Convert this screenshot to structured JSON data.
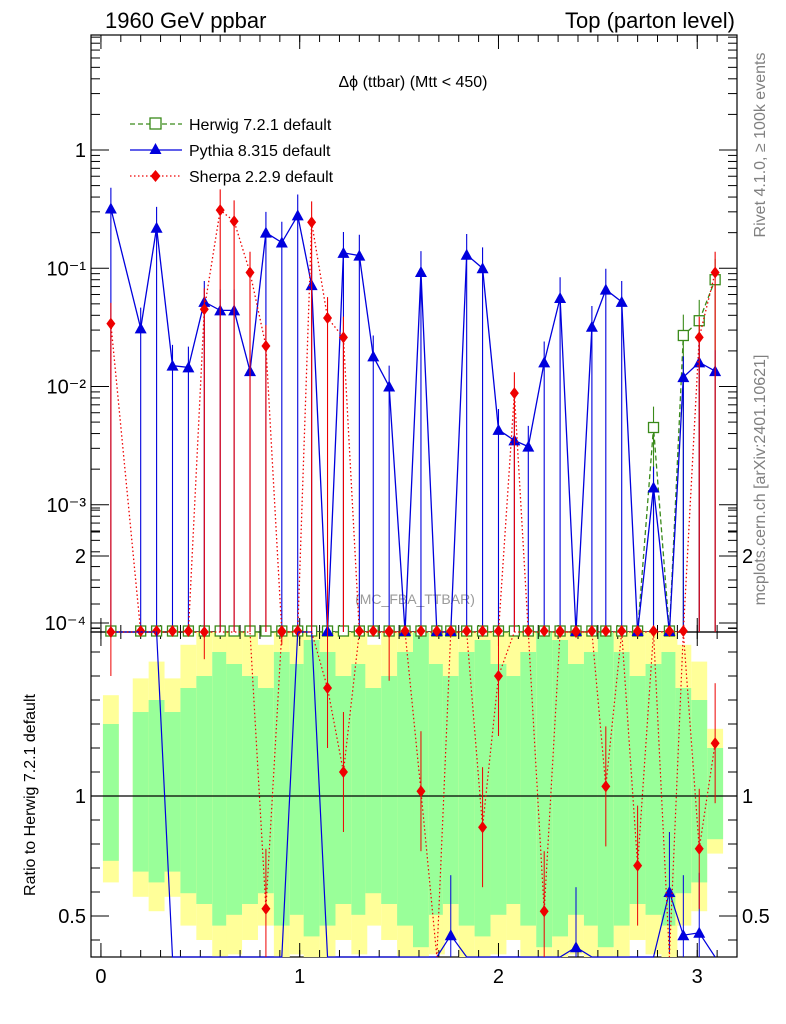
{
  "header": {
    "left": "1960 GeV ppbar",
    "right": "Top (parton level)"
  },
  "side": {
    "rivet": "Rivet 4.1.0, ≥ 100k events",
    "mcplots": "mcplots.cern.ch [arXiv:2401.10621]"
  },
  "chart_data": {
    "type": "line",
    "title": "Δϕ (ttbar) (Mtt < 450)",
    "watermark": "(MC_FBA_TTBAR)",
    "xlim": [
      -0.05,
      3.2
    ],
    "ylim_top": [
      8e-05,
      10
    ],
    "yscale_top": "log",
    "ylim_ratio": [
      0.35,
      2.3
    ],
    "ylabel_ratio": "Ratio to Herwig 7.2.1 default",
    "x_ticks": [
      "0",
      "1",
      "2",
      "3"
    ],
    "y_ticks_top": [
      "10⁻⁴",
      "10⁻³",
      "10⁻²",
      "10⁻¹",
      "1"
    ],
    "y_ticks_ratio": [
      "0.5",
      "1",
      "2"
    ],
    "legend_position": "top-left",
    "x": [
      0.05,
      0.2,
      0.28,
      0.36,
      0.44,
      0.52,
      0.6,
      0.67,
      0.75,
      0.83,
      0.91,
      0.99,
      1.06,
      1.14,
      1.22,
      1.3,
      1.37,
      1.45,
      1.53,
      1.61,
      1.69,
      1.76,
      1.84,
      1.92,
      2.0,
      2.08,
      2.15,
      2.23,
      2.31,
      2.39,
      2.47,
      2.54,
      2.62,
      2.7,
      2.78,
      2.86,
      2.93,
      3.01,
      3.09
    ],
    "series": [
      {
        "name": "Herwig 7.2.1 default",
        "color": "#3a8a1a",
        "values": [
          8e-05,
          8e-05,
          8e-05,
          8e-05,
          8e-05,
          8e-05,
          8e-05,
          8e-05,
          8e-05,
          8e-05,
          8e-05,
          8e-05,
          8e-05,
          8e-05,
          8e-05,
          8e-05,
          8e-05,
          8e-05,
          8e-05,
          8e-05,
          8e-05,
          8e-05,
          8e-05,
          8e-05,
          8e-05,
          8e-05,
          8e-05,
          8e-05,
          8e-05,
          8e-05,
          8e-05,
          8e-05,
          8e-05,
          8e-05,
          0.0045,
          8e-05,
          0.027,
          0.036,
          0.08
        ]
      },
      {
        "name": "Pythia 8.315 default",
        "color": "#0000dd",
        "values": [
          0.32,
          0.031,
          0.22,
          0.015,
          0.0145,
          0.052,
          0.044,
          0.044,
          0.0135,
          0.2,
          0.165,
          0.28,
          0.072,
          8e-05,
          0.135,
          0.128,
          0.018,
          0.01,
          8e-05,
          0.093,
          8e-05,
          8e-05,
          0.13,
          0.1,
          0.0043,
          0.0035,
          0.0031,
          0.016,
          0.056,
          8e-05,
          0.032,
          0.066,
          0.052,
          8e-05,
          0.0014,
          8e-05,
          0.012,
          0.016,
          0.0135
        ],
        "ratio": [
          3.0,
          3.0,
          3.0,
          0.3,
          0.3,
          0.3,
          0.3,
          0.3,
          0.3,
          0.3,
          0.3,
          3.0,
          3.0,
          0.3,
          0.3,
          0.3,
          0.3,
          0.3,
          0.3,
          0.3,
          0.3,
          0.42,
          0.3,
          0.3,
          0.3,
          0.3,
          0.3,
          0.3,
          0.3,
          0.37,
          0.3,
          0.3,
          0.3,
          0.3,
          0.3,
          0.6,
          0.42,
          0.43,
          0.3
        ]
      },
      {
        "name": "Sherpa 2.2.9 default",
        "color": "#ee0000",
        "values": [
          0.034,
          8e-05,
          8e-05,
          8e-05,
          8e-05,
          0.045,
          0.31,
          0.25,
          0.092,
          0.022,
          8e-05,
          8e-05,
          0.245,
          0.038,
          0.026,
          8e-05,
          8e-05,
          8e-05,
          8e-05,
          8e-05,
          8e-05,
          8e-05,
          8e-05,
          8e-05,
          8e-05,
          0.0088,
          8e-05,
          8e-05,
          8e-05,
          8e-05,
          8e-05,
          8e-05,
          8e-05,
          8e-05,
          8e-05,
          8e-05,
          8e-05,
          0.026,
          0.092
        ],
        "ratio": [
          1.75,
          3.0,
          3.0,
          3.0,
          3.0,
          1.82,
          3.0,
          3.0,
          3.0,
          0.53,
          1.88,
          3.0,
          3.0,
          1.45,
          1.1,
          3.0,
          3.0,
          1.73,
          3.0,
          1.02,
          0.3,
          3.0,
          3.0,
          0.87,
          1.5,
          3.0,
          3.0,
          0.52,
          2.12,
          1.97,
          3.0,
          1.04,
          3.0,
          0.71,
          3.0,
          0.3,
          3.0,
          0.78,
          1.22
        ]
      }
    ]
  }
}
